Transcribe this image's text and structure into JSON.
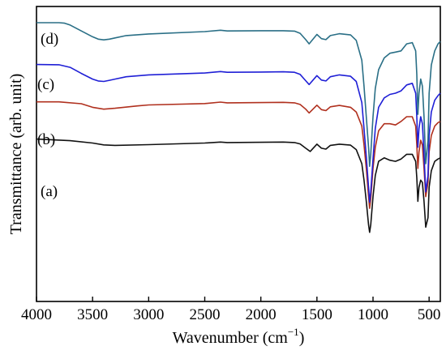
{
  "chart_data": {
    "type": "line",
    "xlabel": "Wavenumber (cm",
    "xlabel_sup": "−1",
    "xlabel_close": ")",
    "ylabel": "Transmittance (arb. unit)",
    "xlim": [
      4000,
      400
    ],
    "x_reversed": true,
    "ylim": [
      0,
      1
    ],
    "y_ticks_shown": false,
    "x_ticks": [
      4000,
      3500,
      3000,
      2500,
      2000,
      1500,
      1000,
      500
    ],
    "x_tick_labels": [
      "4000",
      "3500",
      "3000",
      "2500",
      "2000",
      "1500",
      "1000",
      "500"
    ],
    "grid": false,
    "colors": {
      "a": "#111111",
      "b": "#b0301e",
      "c": "#1f1fd6",
      "d": "#2a6f86"
    },
    "series": [
      {
        "name": "(a)",
        "key": "a",
        "x": [
          4000,
          3700,
          3500,
          3400,
          3300,
          3000,
          2500,
          2360,
          2300,
          2000,
          1800,
          1700,
          1650,
          1600,
          1560,
          1500,
          1460,
          1420,
          1380,
          1300,
          1200,
          1150,
          1100,
          1080,
          1060,
          1040,
          1030,
          1020,
          1000,
          980,
          950,
          900,
          850,
          800,
          750,
          700,
          650,
          620,
          610,
          600,
          590,
          575,
          560,
          545,
          530,
          510,
          500,
          480,
          450,
          420,
          400
        ],
        "y": [
          0.505,
          0.498,
          0.488,
          0.48,
          0.478,
          0.481,
          0.488,
          0.492,
          0.49,
          0.491,
          0.492,
          0.49,
          0.484,
          0.466,
          0.452,
          0.483,
          0.466,
          0.462,
          0.478,
          0.483,
          0.479,
          0.46,
          0.4,
          0.33,
          0.24,
          0.14,
          0.108,
          0.14,
          0.26,
          0.35,
          0.41,
          0.425,
          0.415,
          0.41,
          0.42,
          0.44,
          0.44,
          0.41,
          0.34,
          0.24,
          0.3,
          0.33,
          0.32,
          0.24,
          0.13,
          0.17,
          0.3,
          0.37,
          0.41,
          0.42,
          0.425
        ]
      },
      {
        "name": "(b)",
        "key": "b",
        "x": [
          4000,
          3800,
          3600,
          3500,
          3400,
          3300,
          3100,
          3000,
          2500,
          2360,
          2300,
          2000,
          1800,
          1700,
          1650,
          1600,
          1570,
          1500,
          1460,
          1420,
          1380,
          1300,
          1200,
          1150,
          1100,
          1080,
          1060,
          1040,
          1030,
          1020,
          1000,
          980,
          950,
          900,
          850,
          800,
          750,
          700,
          650,
          620,
          610,
          600,
          590,
          575,
          560,
          545,
          530,
          510,
          500,
          480,
          450,
          420,
          400
        ],
        "y": [
          0.663,
          0.663,
          0.655,
          0.64,
          0.632,
          0.636,
          0.646,
          0.65,
          0.656,
          0.662,
          0.659,
          0.66,
          0.661,
          0.659,
          0.652,
          0.632,
          0.616,
          0.649,
          0.63,
          0.626,
          0.642,
          0.648,
          0.64,
          0.62,
          0.56,
          0.48,
          0.38,
          0.26,
          0.21,
          0.25,
          0.38,
          0.47,
          0.54,
          0.57,
          0.57,
          0.565,
          0.58,
          0.6,
          0.6,
          0.56,
          0.48,
          0.38,
          0.45,
          0.5,
          0.48,
          0.38,
          0.26,
          0.32,
          0.45,
          0.52,
          0.56,
          0.575,
          0.58
        ]
      },
      {
        "name": "(c)",
        "key": "c",
        "x": [
          4000,
          3800,
          3700,
          3600,
          3500,
          3450,
          3400,
          3350,
          3300,
          3200,
          3000,
          2500,
          2360,
          2300,
          2000,
          1800,
          1700,
          1650,
          1600,
          1570,
          1500,
          1460,
          1420,
          1380,
          1300,
          1200,
          1150,
          1100,
          1080,
          1060,
          1040,
          1030,
          1020,
          1000,
          980,
          950,
          900,
          850,
          800,
          750,
          700,
          650,
          620,
          610,
          600,
          590,
          575,
          560,
          545,
          530,
          510,
          500,
          480,
          450,
          420,
          400
        ],
        "y": [
          0.822,
          0.821,
          0.81,
          0.784,
          0.76,
          0.752,
          0.75,
          0.755,
          0.76,
          0.77,
          0.778,
          0.786,
          0.792,
          0.789,
          0.79,
          0.791,
          0.789,
          0.78,
          0.753,
          0.737,
          0.775,
          0.756,
          0.752,
          0.77,
          0.778,
          0.772,
          0.75,
          0.66,
          0.55,
          0.43,
          0.3,
          0.236,
          0.28,
          0.42,
          0.55,
          0.64,
          0.68,
          0.695,
          0.7,
          0.71,
          0.735,
          0.742,
          0.7,
          0.6,
          0.47,
          0.55,
          0.6,
          0.57,
          0.44,
          0.28,
          0.35,
          0.52,
          0.62,
          0.67,
          0.69,
          0.7
        ]
      },
      {
        "name": "(d)",
        "key": "d",
        "x": [
          4000,
          3800,
          3750,
          3700,
          3600,
          3500,
          3450,
          3400,
          3350,
          3300,
          3200,
          3000,
          2500,
          2360,
          2300,
          2000,
          1800,
          1700,
          1650,
          1600,
          1570,
          1500,
          1460,
          1420,
          1380,
          1300,
          1200,
          1150,
          1100,
          1080,
          1060,
          1040,
          1030,
          1020,
          1000,
          980,
          950,
          900,
          850,
          800,
          750,
          700,
          650,
          620,
          610,
          600,
          590,
          575,
          560,
          545,
          530,
          510,
          500,
          480,
          450,
          420,
          400
        ],
        "y": [
          1.0,
          1.0,
          0.998,
          0.99,
          0.965,
          0.94,
          0.93,
          0.927,
          0.93,
          0.935,
          0.945,
          0.952,
          0.962,
          0.968,
          0.965,
          0.966,
          0.966,
          0.964,
          0.955,
          0.928,
          0.91,
          0.95,
          0.932,
          0.928,
          0.945,
          0.953,
          0.948,
          0.925,
          0.84,
          0.73,
          0.6,
          0.47,
          0.389,
          0.44,
          0.6,
          0.72,
          0.8,
          0.85,
          0.87,
          0.875,
          0.88,
          0.91,
          0.915,
          0.88,
          0.78,
          0.61,
          0.7,
          0.76,
          0.73,
          0.6,
          0.4,
          0.5,
          0.7,
          0.82,
          0.88,
          0.91,
          0.92
        ]
      }
    ]
  }
}
